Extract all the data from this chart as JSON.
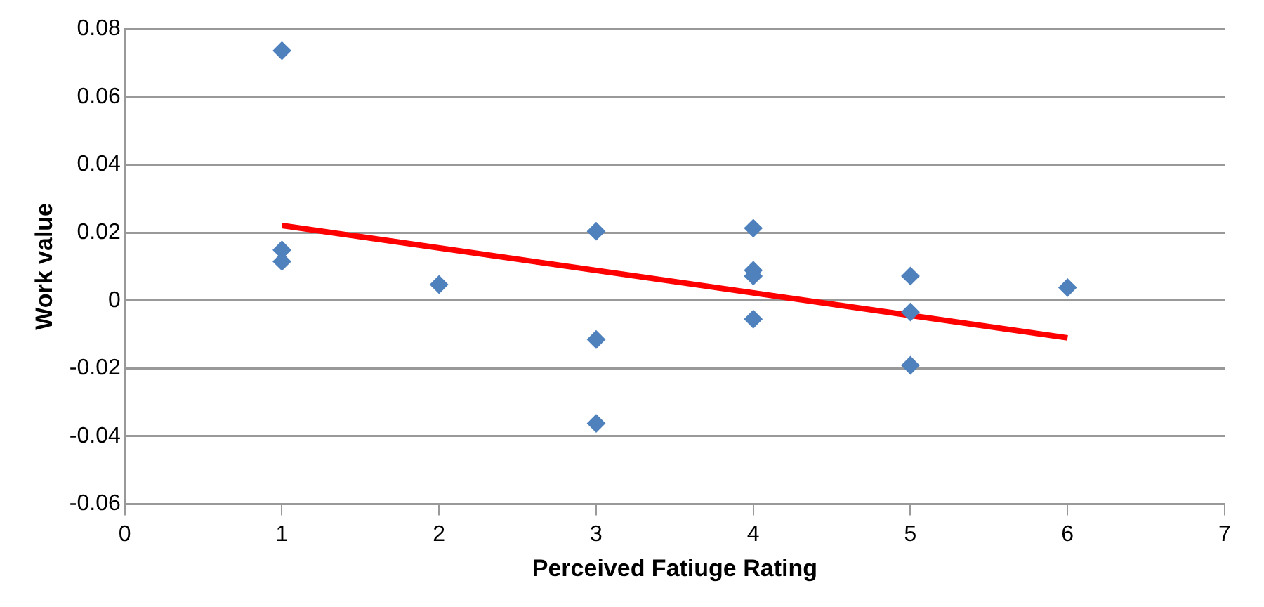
{
  "chart_data": {
    "type": "scatter",
    "xlabel": "Perceived Fatiuge Rating",
    "ylabel": "Work value",
    "xlim": [
      0,
      7
    ],
    "xticks": [
      0,
      1,
      2,
      3,
      4,
      5,
      6,
      7
    ],
    "ylim": [
      -0.06,
      0.08
    ],
    "yticks": [
      -0.06,
      -0.04,
      -0.02,
      0,
      0.02,
      0.04,
      0.06,
      0.08
    ],
    "grid": "y",
    "legend": false,
    "marker": "diamond",
    "series": [
      {
        "color": "#4f81bd",
        "x": [
          1,
          1,
          1,
          2,
          3,
          3,
          3,
          4,
          4,
          4,
          4,
          5,
          5,
          5,
          6
        ],
        "values": [
          0.0736,
          0.0149,
          0.0115,
          0.0047,
          0.0204,
          -0.0115,
          -0.0362,
          0.0213,
          0.0089,
          0.0072,
          -0.0055,
          0.0072,
          -0.0034,
          -0.0191,
          0.0038
        ]
      },
      {
        "type": "line",
        "color": "#ff0000",
        "marker": "none",
        "line_style": "solid",
        "x": [
          1,
          6
        ],
        "values": [
          0.0221,
          -0.011
        ]
      }
    ]
  }
}
